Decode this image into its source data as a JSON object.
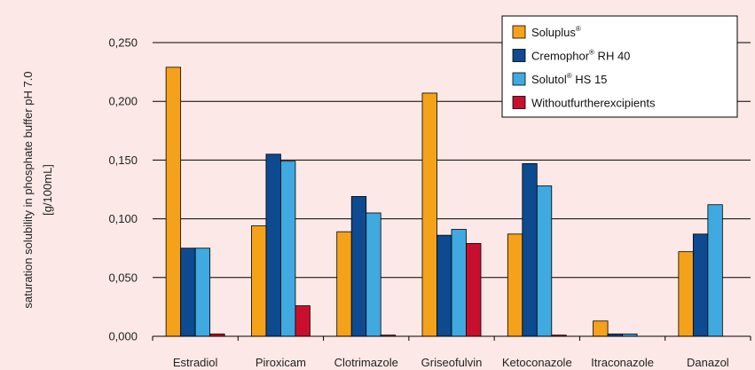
{
  "chart_data": {
    "type": "bar",
    "ylabel": {
      "line1": "saturation solubility in phosphate buffer pH 7.0",
      "line2": "[g/100mL]"
    },
    "categories": [
      "Estradiol",
      "Piroxicam",
      "Clotrimazole",
      "Griseofulvin",
      "Ketoconazole",
      "Itraconazole",
      "Danazol"
    ],
    "ylim": [
      0,
      0.25
    ],
    "yticks": [
      0,
      0.05,
      0.1,
      0.15,
      0.2,
      0.25
    ],
    "ytick_labels": [
      "0,000",
      "0,050",
      "0,100",
      "0,150",
      "0,200",
      "0,250"
    ],
    "grid": true,
    "legend_position": "top-right",
    "series": [
      {
        "name": "Soluplus",
        "sup": "®",
        "suffix": "",
        "color": "#f5a21b",
        "values": [
          0.229,
          0.094,
          0.089,
          0.207,
          0.087,
          0.013,
          0.072
        ]
      },
      {
        "name": "Cremophor",
        "sup": "®",
        "suffix": " RH 40",
        "color": "#0d4a8f",
        "values": [
          0.075,
          0.155,
          0.119,
          0.086,
          0.147,
          0.002,
          0.087
        ]
      },
      {
        "name": "Solutol",
        "sup": "®",
        "suffix": " HS 15",
        "color": "#3fa9e0",
        "values": [
          0.075,
          0.149,
          0.105,
          0.091,
          0.128,
          0.002,
          0.112
        ]
      },
      {
        "name": "Withoutfurtherexcipients",
        "sup": "",
        "suffix": "",
        "color": "#c8102e",
        "values": [
          0.002,
          0.026,
          0.001,
          0.079,
          0.001,
          0,
          0
        ]
      }
    ]
  }
}
